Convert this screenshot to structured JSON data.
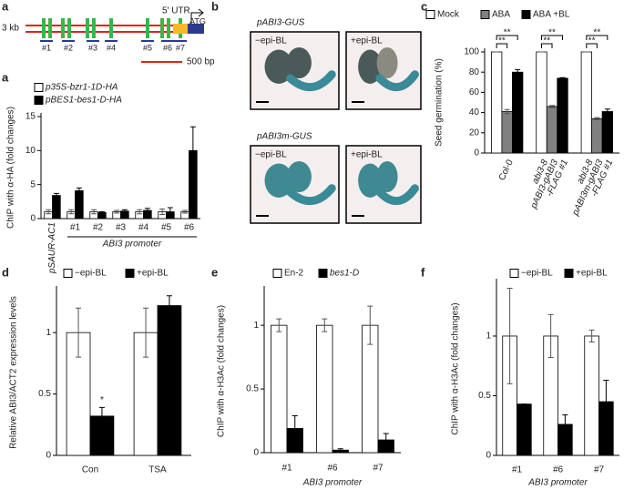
{
  "diagram": {
    "panel": "a",
    "scale": "3 kb",
    "sites": [
      "#1",
      "#2",
      "#3",
      "#4",
      "#5",
      "#6",
      "#7"
    ],
    "utr": "5′ UTR",
    "start": "ATG",
    "scalebar": "500 bp"
  },
  "images": {
    "panel": "b",
    "rows": [
      {
        "title": "pABI3-GUS",
        "labels": [
          "−epi-BL",
          "+epi-BL"
        ]
      },
      {
        "title": "pABI3m-GUS",
        "labels": [
          "−epi-BL",
          "+epi-BL"
        ]
      }
    ]
  },
  "chart_data": [
    {
      "type": "bar",
      "panel": "a",
      "ylabel": "ChIP with α-HA (fold changes)",
      "xlabel": "ABI3 promoter",
      "categories": [
        "pSAUR-AC1",
        "#1",
        "#2",
        "#3",
        "#4",
        "#5",
        "#6"
      ],
      "series": [
        {
          "name": "p35S-bzr1-1D-HA",
          "color": "#ffffff",
          "values": [
            1,
            1,
            1,
            1,
            1,
            1,
            1
          ],
          "errors": [
            0.3,
            0.3,
            0.3,
            0.2,
            0.3,
            0.4,
            0.2
          ]
        },
        {
          "name": "pBES1-bes1-D-HA",
          "color": "#000000",
          "values": [
            3.4,
            4.1,
            0.9,
            1.1,
            1.2,
            1.0,
            10.0
          ],
          "errors": [
            0.3,
            0.4,
            0.1,
            0.2,
            0.3,
            0.6,
            3.5
          ]
        }
      ],
      "ylim": [
        0,
        15
      ],
      "yticks": [
        0,
        5,
        10,
        15
      ],
      "legend": "top-left"
    },
    {
      "type": "bar",
      "panel": "c",
      "ylabel": "Seed germination (%)",
      "categories": [
        "Col-0",
        [
          "abi3-8",
          "pABI3-gABI3",
          "-FLAG #1"
        ],
        [
          "abi3-8",
          "pABI3m-gABI3",
          "-FLAG #1"
        ]
      ],
      "series": [
        {
          "name": "Mock",
          "color": "#ffffff",
          "values": [
            100,
            100,
            100
          ],
          "errors": [
            0,
            0,
            0
          ]
        },
        {
          "name": "ABA",
          "color": "#808080",
          "values": [
            41,
            46,
            34
          ],
          "errors": [
            2,
            1,
            1
          ]
        },
        {
          "name": "ABA +BL",
          "color": "#000000",
          "values": [
            80,
            74,
            41
          ],
          "errors": [
            2.5,
            0.5,
            2.5
          ]
        }
      ],
      "ylim": [
        0,
        100
      ],
      "yticks": [
        0,
        20,
        40,
        60,
        80,
        100
      ],
      "legend": "top",
      "annotations": [
        "**",
        "**",
        "**",
        "**",
        "**",
        "**"
      ]
    },
    {
      "type": "bar",
      "panel": "d",
      "ylabel": "Relative ABI3/ACT2 expression levels",
      "categories": [
        "Con",
        "TSA"
      ],
      "series": [
        {
          "name": "−epi-BL",
          "color": "#ffffff",
          "values": [
            1,
            1
          ],
          "errors": [
            0.2,
            0.2
          ]
        },
        {
          "name": "+epi-BL",
          "color": "#000000",
          "values": [
            0.32,
            1.22
          ],
          "errors": [
            0.07,
            0.08
          ]
        }
      ],
      "ylim": [
        0,
        1.35
      ],
      "yticks": [
        0,
        0.5,
        1
      ],
      "legend": "top-left",
      "annotations": [
        "*"
      ]
    },
    {
      "type": "bar",
      "panel": "e",
      "ylabel": "ChIP with α-H3Ac (fold changes)",
      "xlabel": "ABI3 promoter",
      "categories": [
        "#1",
        "#6",
        "#7"
      ],
      "series": [
        {
          "name": "En-2",
          "color": "#ffffff",
          "values": [
            1,
            1,
            1
          ],
          "errors": [
            0.05,
            0.05,
            0.15
          ]
        },
        {
          "name": "bes1-D",
          "color": "#000000",
          "values": [
            0.19,
            0.02,
            0.1
          ],
          "errors": [
            0.1,
            0.01,
            0.05
          ]
        }
      ],
      "ylim": [
        0,
        1.28
      ],
      "yticks": [
        0,
        0.5,
        1
      ],
      "legend": "top-left"
    },
    {
      "type": "bar",
      "panel": "f",
      "ylabel": "ChIP with α-H3Ac (fold changes)",
      "xlabel": "ABI3 promoter",
      "categories": [
        "#1",
        "#6",
        "#7"
      ],
      "series": [
        {
          "name": "−epi-BL",
          "color": "#ffffff",
          "values": [
            1,
            1,
            1
          ],
          "errors": [
            0.4,
            0.18,
            0.05
          ]
        },
        {
          "name": "+epi-BL",
          "color": "#000000",
          "values": [
            0.43,
            0.26,
            0.45
          ],
          "errors": [
            0,
            0.08,
            0.18
          ]
        }
      ],
      "ylim": [
        0,
        1.45
      ],
      "yticks": [
        0,
        0.5,
        1
      ],
      "legend": "top-left"
    }
  ]
}
